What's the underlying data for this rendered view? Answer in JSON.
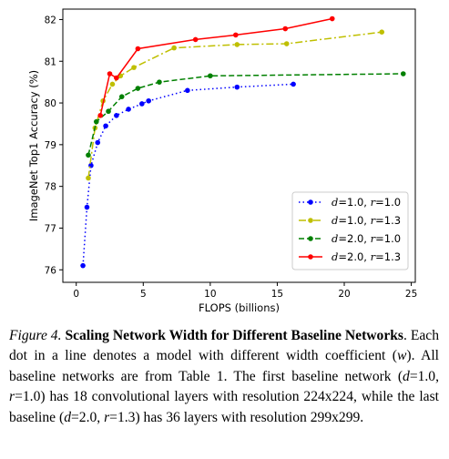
{
  "chart_data": {
    "type": "line",
    "xlabel": "FLOPS (billions)",
    "ylabel": "ImageNet Top1 Accuracy (%)",
    "xlim": [
      -1,
      25.3
    ],
    "ylim": [
      75.7,
      82.25
    ],
    "xticks": [
      0,
      5,
      10,
      15,
      20,
      25
    ],
    "yticks": [
      76,
      77,
      78,
      79,
      80,
      81,
      82
    ],
    "legend_position": "lower-right",
    "series": [
      {
        "var1": "d",
        "val1": "=1.0, ",
        "var2": "r",
        "val2": "=1.0",
        "color": "#0000ff",
        "dash": "1.5,3",
        "x": [
          0.5,
          0.8,
          1.1,
          1.6,
          2.2,
          3.0,
          3.9,
          4.9,
          5.4,
          8.3,
          12.0,
          16.2
        ],
        "y": [
          76.1,
          77.5,
          78.5,
          79.05,
          79.45,
          79.7,
          79.85,
          79.98,
          80.05,
          80.3,
          80.38,
          80.45
        ]
      },
      {
        "var1": "d",
        "val1": "=1.0, ",
        "var2": "r",
        "val2": "=1.3",
        "color": "#bfbf00",
        "dash": "8,3,2,3",
        "x": [
          0.9,
          1.4,
          2.0,
          2.7,
          3.3,
          4.3,
          7.3,
          12.0,
          15.7,
          22.8
        ],
        "y": [
          78.2,
          79.4,
          80.05,
          80.45,
          80.65,
          80.85,
          81.32,
          81.4,
          81.42,
          81.7
        ]
      },
      {
        "var1": "d",
        "val1": "=2.0, ",
        "var2": "r",
        "val2": "=1.0",
        "color": "#008000",
        "dash": "6,3",
        "x": [
          0.9,
          1.5,
          2.4,
          3.4,
          4.6,
          6.2,
          10.0,
          24.4
        ],
        "y": [
          78.75,
          79.55,
          79.8,
          80.15,
          80.35,
          80.5,
          80.65,
          80.7
        ]
      },
      {
        "var1": "d",
        "val1": "=2.0, ",
        "var2": "r",
        "val2": "=1.3",
        "color": "#ff0000",
        "dash": "",
        "x": [
          1.8,
          2.5,
          3.0,
          4.6,
          8.9,
          11.9,
          15.6,
          19.1
        ],
        "y": [
          79.7,
          80.7,
          80.6,
          81.3,
          81.52,
          81.63,
          81.78,
          82.02
        ]
      }
    ]
  },
  "caption": {
    "label": "Figure 4.",
    "title": "Scaling Network Width for Different Baseline Networks",
    "p1": ". Each dot in a line denotes a model with different width coefficient (",
    "w": "w",
    "p2": "). All baseline networks are from Table 1. The first baseline network (",
    "d1": "d",
    "p3": "=1.0, ",
    "r1": "r",
    "p4": "=1.0) has 18 convolutional layers with resolution 224x224, while the last baseline (",
    "d2": "d",
    "p5": "=2.0, ",
    "r2": "r",
    "p6": "=1.3) has 36 layers with resolution 299x299."
  }
}
